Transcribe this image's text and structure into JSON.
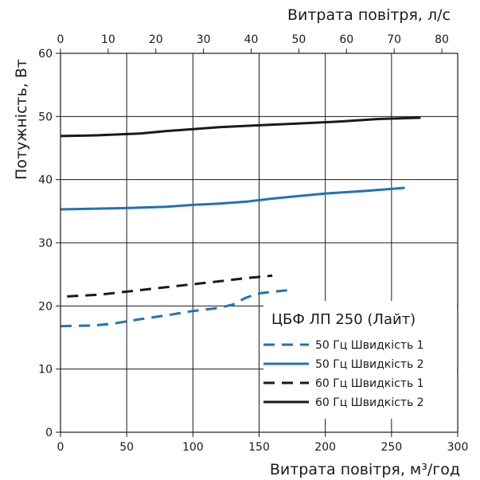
{
  "chart_data": {
    "type": "line",
    "xlabel_bottom": "Витрата повітря, м³/год",
    "xlabel_top": "Витрата повітря, л/с",
    "ylabel": "Потужність, Вт",
    "xlim_bottom": [
      0,
      300
    ],
    "xlim_top": [
      0,
      83.33
    ],
    "ylim": [
      0,
      60
    ],
    "x_ticks_bottom": [
      "0",
      "50",
      "100",
      "150",
      "200",
      "250",
      "300"
    ],
    "x_ticks_top": [
      "0",
      "10",
      "20",
      "30",
      "40",
      "50",
      "60",
      "70",
      "80"
    ],
    "y_ticks": [
      "0",
      "10",
      "20",
      "30",
      "40",
      "50",
      "60"
    ],
    "grid": true,
    "legend_title": "ЦБФ ЛП 250 (Лайт)",
    "legend_position": "bottom-right",
    "series": [
      {
        "name": "50 Гц Швидкість 1",
        "color": "#1f73b7",
        "dash": "dashed",
        "points": [
          [
            0,
            16.8
          ],
          [
            25,
            16.9
          ],
          [
            40,
            17.2
          ],
          [
            60,
            17.9
          ],
          [
            80,
            18.5
          ],
          [
            100,
            19.2
          ],
          [
            120,
            19.7
          ],
          [
            130,
            20.2
          ],
          [
            140,
            21.3
          ],
          [
            150,
            22.0
          ],
          [
            172,
            22.5
          ]
        ]
      },
      {
        "name": "50 Гц Швидкість 2",
        "color": "#1f73b7",
        "dash": "solid",
        "points": [
          [
            0,
            35.3
          ],
          [
            50,
            35.5
          ],
          [
            80,
            35.7
          ],
          [
            100,
            36.0
          ],
          [
            120,
            36.2
          ],
          [
            140,
            36.5
          ],
          [
            160,
            37.0
          ],
          [
            180,
            37.4
          ],
          [
            200,
            37.8
          ],
          [
            230,
            38.2
          ],
          [
            260,
            38.7
          ]
        ]
      },
      {
        "name": "60 Гц Швидкість 1",
        "color": "#1a1a1a",
        "dash": "dashed",
        "points": [
          [
            5,
            21.5
          ],
          [
            30,
            21.8
          ],
          [
            60,
            22.5
          ],
          [
            90,
            23.2
          ],
          [
            120,
            23.9
          ],
          [
            140,
            24.4
          ],
          [
            160,
            24.8
          ]
        ]
      },
      {
        "name": "60 Гц Швидкість 2",
        "color": "#1a1a1a",
        "dash": "solid",
        "points": [
          [
            0,
            46.9
          ],
          [
            25,
            47.0
          ],
          [
            60,
            47.3
          ],
          [
            80,
            47.7
          ],
          [
            100,
            48.0
          ],
          [
            120,
            48.3
          ],
          [
            150,
            48.6
          ],
          [
            180,
            48.9
          ],
          [
            210,
            49.2
          ],
          [
            240,
            49.6
          ],
          [
            272,
            49.8
          ]
        ]
      }
    ]
  }
}
